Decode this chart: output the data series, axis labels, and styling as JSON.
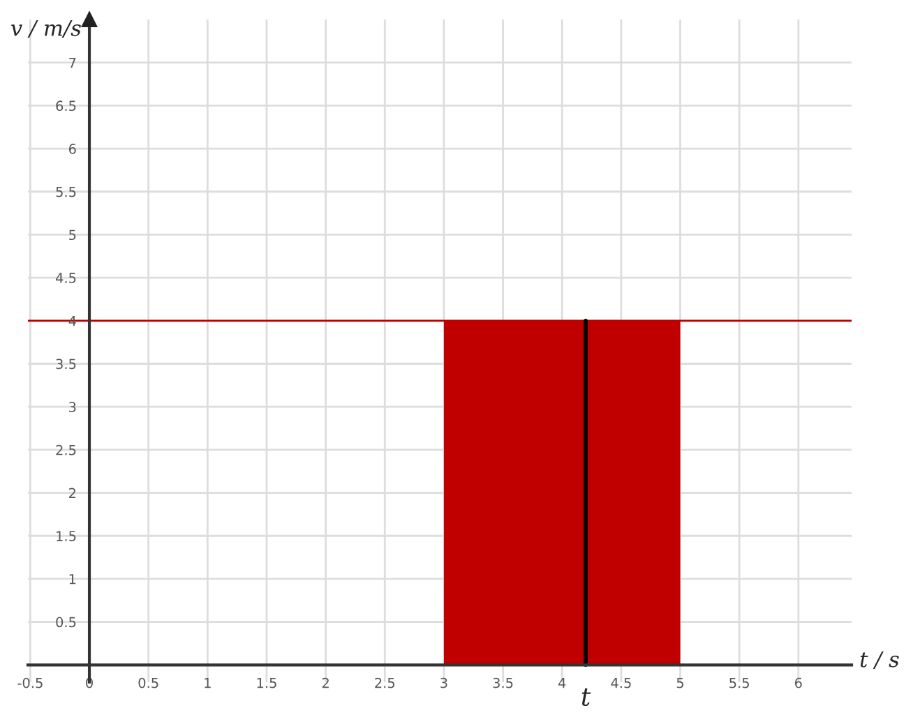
{
  "chart_data": {
    "type": "histogram",
    "xlabel": "t / s",
    "ylabel": "v / m/s",
    "bins": [
      3,
      5
    ],
    "values": [
      4
    ],
    "color": "#c00000",
    "xlim": [
      -0.52,
      6.45
    ],
    "ylim": [
      -0.2,
      7.5
    ],
    "xticks": [
      -0.5,
      0,
      0.5,
      1,
      1.5,
      2,
      2.5,
      3,
      3.5,
      4,
      4.5,
      5,
      5.5,
      6
    ],
    "yticks": [
      0.5,
      1,
      1.5,
      2,
      2.5,
      3,
      3.5,
      4,
      4.5,
      5,
      5.5,
      6,
      6.5,
      7
    ],
    "grid": true,
    "ref_lines": [
      {
        "axis": "y",
        "value": 4,
        "color": "#c00000"
      },
      {
        "axis": "x",
        "value": 4.2,
        "label": "t",
        "color": "#000000"
      }
    ]
  }
}
